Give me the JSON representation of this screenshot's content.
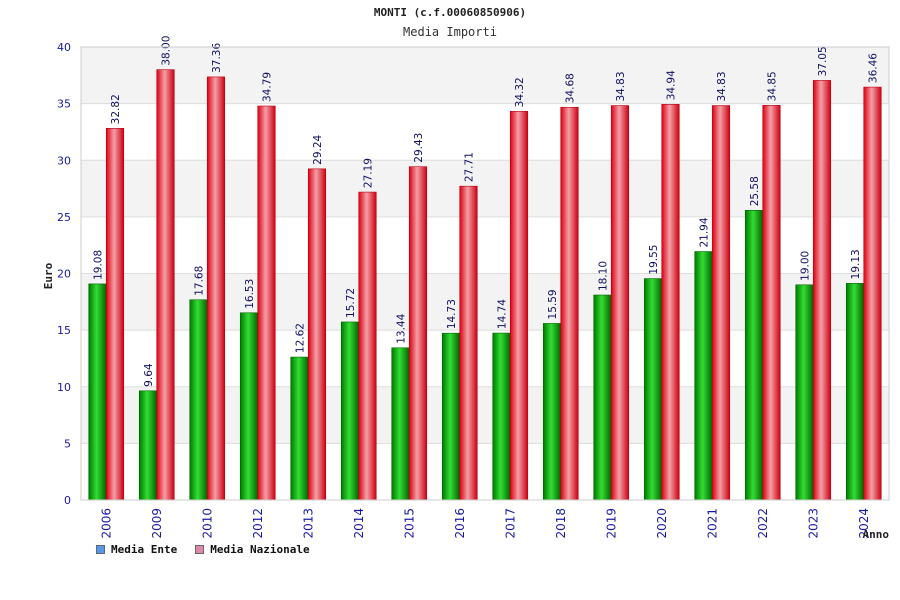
{
  "chart_data": {
    "type": "bar",
    "title": "MONTI (c.f.00060850906)",
    "subtitle": "Media Importi",
    "xlabel": "Anno",
    "ylabel": "Euro",
    "ylim": [
      0,
      40
    ],
    "yticks": [
      0,
      5,
      10,
      15,
      20,
      25,
      30,
      35,
      40
    ],
    "grid": true,
    "categories": [
      "2006",
      "2009",
      "2010",
      "2012",
      "2013",
      "2014",
      "2015",
      "2016",
      "2017",
      "2018",
      "2019",
      "2020",
      "2021",
      "2022",
      "2023",
      "2024"
    ],
    "series": [
      {
        "name": "Media Ente",
        "color": "#00aa00",
        "values": [
          19.08,
          9.64,
          17.68,
          16.53,
          12.62,
          15.72,
          13.44,
          14.73,
          14.74,
          15.59,
          18.1,
          19.55,
          21.94,
          25.58,
          19.0,
          19.13
        ],
        "labels": [
          "19.08",
          "9.64",
          "17.68",
          "16.53",
          "12.62",
          "15.72",
          "13.44",
          "14.73",
          "14.74",
          "15.59",
          "18.10",
          "19.55",
          "21.94",
          "25.58",
          "19.00",
          "19.13"
        ]
      },
      {
        "name": "Media Nazionale",
        "color": "#ee1122",
        "values": [
          32.82,
          38.0,
          37.36,
          34.79,
          29.24,
          27.19,
          29.43,
          27.71,
          34.32,
          34.68,
          34.83,
          34.94,
          34.83,
          34.85,
          37.05,
          36.46
        ],
        "labels": [
          "32.82",
          "38.00",
          "37.36",
          "34.79",
          "29.24",
          "27.19",
          "29.43",
          "27.71",
          "34.32",
          "34.68",
          "34.83",
          "34.94",
          "34.83",
          "34.85",
          "37.05",
          "36.46"
        ]
      }
    ],
    "legend": [
      {
        "label": "Media Ente",
        "color": "#5599ee"
      },
      {
        "label": "Media Nazionale",
        "color": "#dd88aa"
      }
    ],
    "legend_position": "bottom-left"
  }
}
